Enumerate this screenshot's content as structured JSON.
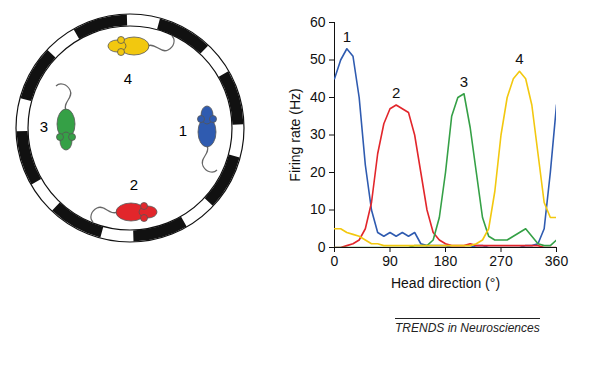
{
  "chart_data": {
    "type": "line",
    "x_label": "Head direction (°)",
    "y_label": "Firing rate (Hz)",
    "x": [
      0,
      10,
      20,
      30,
      40,
      50,
      60,
      70,
      80,
      90,
      100,
      110,
      120,
      130,
      140,
      150,
      160,
      170,
      180,
      190,
      200,
      210,
      220,
      230,
      240,
      250,
      260,
      270,
      280,
      290,
      300,
      310,
      320,
      330,
      340,
      350,
      360
    ],
    "xlim": [
      0,
      360
    ],
    "xticks": [
      0,
      90,
      180,
      270,
      360
    ],
    "ylim": [
      0,
      60
    ],
    "yticks": [
      0,
      10,
      20,
      30,
      40,
      50,
      60
    ],
    "series": [
      {
        "name": "1",
        "color": "#2f5bb0",
        "values": [
          45,
          50,
          53,
          51,
          40,
          22,
          10,
          4,
          3,
          4,
          3,
          4,
          3,
          4,
          1,
          0.5,
          0.5,
          0.5,
          0.5,
          0,
          0,
          0,
          0,
          0.5,
          0.5,
          0,
          0,
          0,
          0,
          0,
          0,
          0.5,
          0.5,
          1,
          5,
          20,
          38
        ]
      },
      {
        "name": "2",
        "color": "#e2262b",
        "values": [
          0,
          0,
          0.5,
          1,
          2,
          5,
          12,
          25,
          33,
          37,
          38,
          37,
          36,
          30,
          20,
          10,
          4,
          2,
          1,
          0.5,
          0.5,
          0.5,
          1,
          0.5,
          0.5,
          0.5,
          0.5,
          0.5,
          0.5,
          0.5,
          0.5,
          0.5,
          0.5,
          0.5,
          0,
          0,
          0
        ]
      },
      {
        "name": "3",
        "color": "#35a046",
        "values": [
          0,
          0,
          0,
          0,
          0,
          0,
          0,
          0,
          0,
          0,
          0,
          0,
          0,
          0.5,
          0.5,
          0.5,
          2,
          8,
          20,
          35,
          40,
          41,
          32,
          20,
          8,
          3,
          2,
          2,
          2,
          3,
          4,
          5,
          3,
          1,
          0.5,
          0.5,
          2
        ]
      },
      {
        "name": "4",
        "color": "#f2c80f",
        "values": [
          5,
          5,
          4,
          3.5,
          3,
          2,
          1,
          1,
          0.5,
          0.5,
          0.5,
          0.5,
          0.5,
          0.5,
          0.5,
          0.5,
          0.5,
          0.5,
          0.5,
          0.5,
          0.5,
          0.5,
          0.5,
          1,
          2,
          5,
          15,
          30,
          40,
          45,
          47,
          45,
          38,
          25,
          12,
          8,
          8
        ]
      }
    ]
  },
  "caption": "TRENDS in Neurosciences"
}
